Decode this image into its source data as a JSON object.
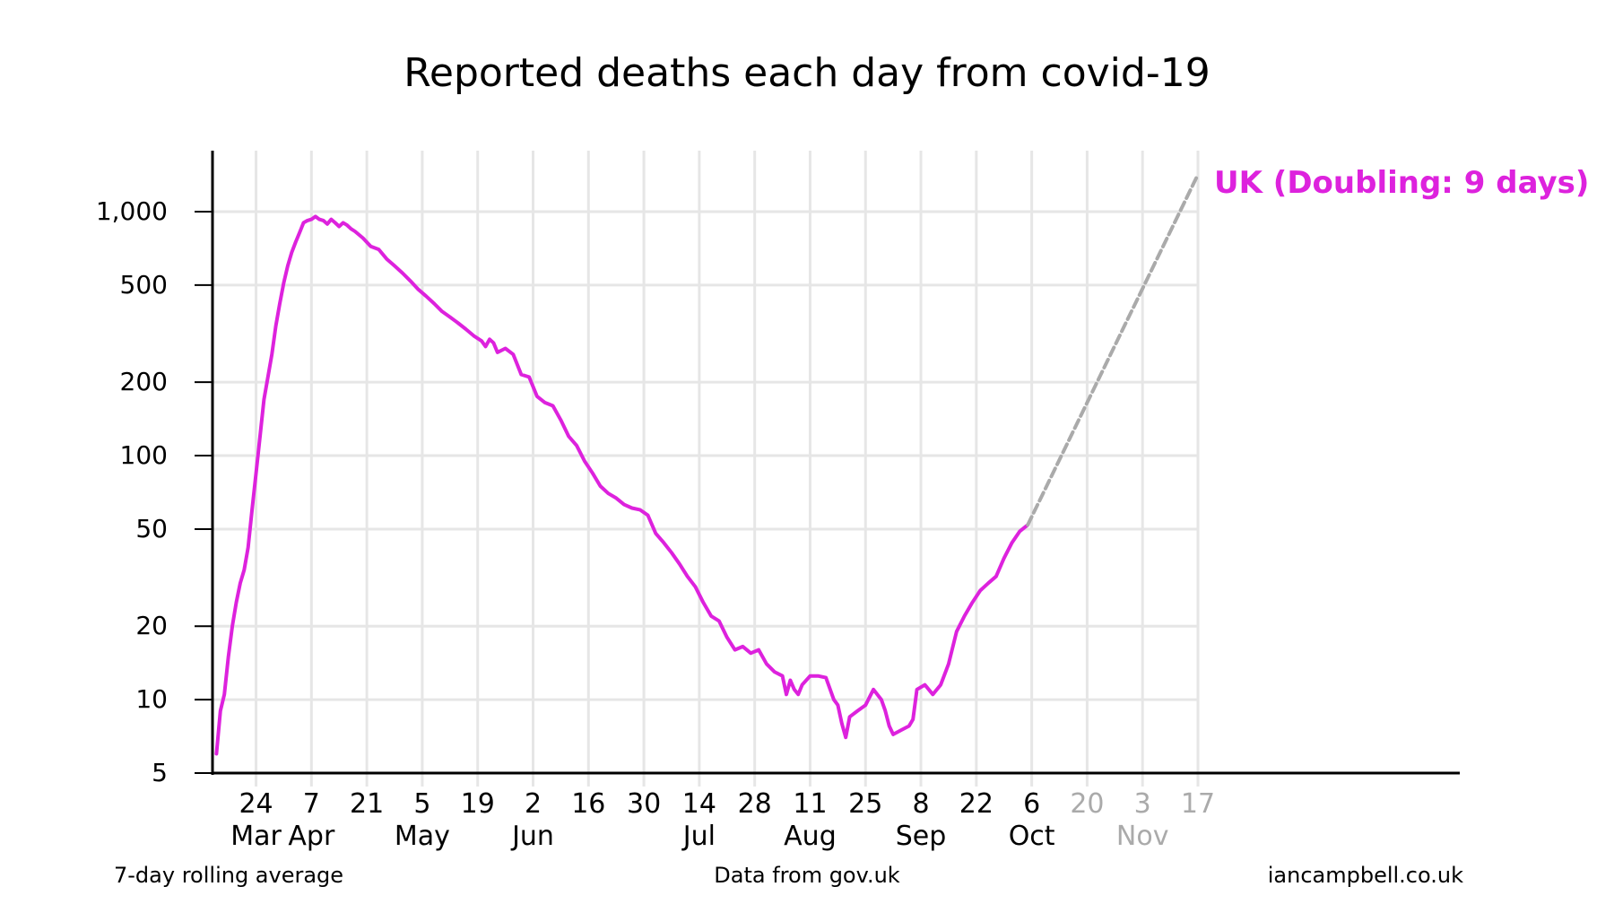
{
  "chart_data": {
    "type": "line",
    "title": "Reported deaths each day from covid-19",
    "y_scale": "log",
    "ylim": [
      5,
      1600
    ],
    "yticks": [
      {
        "value": 5,
        "label": "5"
      },
      {
        "value": 10,
        "label": "10"
      },
      {
        "value": 20,
        "label": "20"
      },
      {
        "value": 50,
        "label": "50"
      },
      {
        "value": 100,
        "label": "100"
      },
      {
        "value": 200,
        "label": "200"
      },
      {
        "value": 500,
        "label": "500"
      },
      {
        "value": 1000,
        "label": "1,000"
      }
    ],
    "xlim": [
      "2020-03-13",
      "2020-11-17"
    ],
    "xticks": [
      {
        "date": "2020-03-24",
        "day": "24",
        "month": "Mar",
        "faded": false
      },
      {
        "date": "2020-04-07",
        "day": "7",
        "month": "Apr",
        "faded": false
      },
      {
        "date": "2020-04-21",
        "day": "21",
        "month": "",
        "faded": false
      },
      {
        "date": "2020-05-05",
        "day": "5",
        "month": "May",
        "faded": false
      },
      {
        "date": "2020-05-19",
        "day": "19",
        "month": "",
        "faded": false
      },
      {
        "date": "2020-06-02",
        "day": "2",
        "month": "Jun",
        "faded": false
      },
      {
        "date": "2020-06-16",
        "day": "16",
        "month": "",
        "faded": false
      },
      {
        "date": "2020-06-30",
        "day": "30",
        "month": "",
        "faded": false
      },
      {
        "date": "2020-07-14",
        "day": "14",
        "month": "Jul",
        "faded": false
      },
      {
        "date": "2020-07-28",
        "day": "28",
        "month": "",
        "faded": false
      },
      {
        "date": "2020-08-11",
        "day": "11",
        "month": "Aug",
        "faded": false
      },
      {
        "date": "2020-08-25",
        "day": "25",
        "month": "",
        "faded": false
      },
      {
        "date": "2020-09-08",
        "day": "8",
        "month": "Sep",
        "faded": false
      },
      {
        "date": "2020-09-22",
        "day": "22",
        "month": "",
        "faded": false
      },
      {
        "date": "2020-10-06",
        "day": "6",
        "month": "Oct",
        "faded": false
      },
      {
        "date": "2020-10-20",
        "day": "20",
        "month": "",
        "faded": true
      },
      {
        "date": "2020-11-03",
        "day": "3",
        "month": "Nov",
        "faded": true
      },
      {
        "date": "2020-11-17",
        "day": "17",
        "month": "",
        "faded": true
      }
    ],
    "grid": true,
    "series": [
      {
        "name": "UK (Doubling: 9 days)",
        "color": "#dd22dd",
        "style": "solid",
        "points": [
          [
            "2020-03-14",
            6
          ],
          [
            "2020-03-15",
            9
          ],
          [
            "2020-03-16",
            10.5
          ],
          [
            "2020-03-17",
            15
          ],
          [
            "2020-03-18",
            20
          ],
          [
            "2020-03-19",
            25
          ],
          [
            "2020-03-20",
            30
          ],
          [
            "2020-03-21",
            34
          ],
          [
            "2020-03-22",
            42
          ],
          [
            "2020-03-23",
            60
          ],
          [
            "2020-03-24",
            85
          ],
          [
            "2020-03-25",
            120
          ],
          [
            "2020-03-26",
            170
          ],
          [
            "2020-03-27",
            210
          ],
          [
            "2020-03-28",
            260
          ],
          [
            "2020-03-29",
            340
          ],
          [
            "2020-03-30",
            420
          ],
          [
            "2020-03-31",
            510
          ],
          [
            "2020-04-01",
            600
          ],
          [
            "2020-04-02",
            680
          ],
          [
            "2020-04-03",
            750
          ],
          [
            "2020-04-04",
            820
          ],
          [
            "2020-04-05",
            900
          ],
          [
            "2020-04-06",
            920
          ],
          [
            "2020-04-07",
            930
          ],
          [
            "2020-04-08",
            955
          ],
          [
            "2020-04-09",
            930
          ],
          [
            "2020-04-10",
            920
          ],
          [
            "2020-04-11",
            890
          ],
          [
            "2020-04-12",
            930
          ],
          [
            "2020-04-13",
            900
          ],
          [
            "2020-04-14",
            870
          ],
          [
            "2020-04-15",
            900
          ],
          [
            "2020-04-16",
            880
          ],
          [
            "2020-04-17",
            850
          ],
          [
            "2020-04-18",
            830
          ],
          [
            "2020-04-20",
            780
          ],
          [
            "2020-04-22",
            720
          ],
          [
            "2020-04-24",
            700
          ],
          [
            "2020-04-26",
            640
          ],
          [
            "2020-04-28",
            600
          ],
          [
            "2020-04-30",
            560
          ],
          [
            "2020-05-02",
            520
          ],
          [
            "2020-05-04",
            480
          ],
          [
            "2020-05-06",
            450
          ],
          [
            "2020-05-08",
            420
          ],
          [
            "2020-05-10",
            390
          ],
          [
            "2020-05-12",
            370
          ],
          [
            "2020-05-14",
            350
          ],
          [
            "2020-05-16",
            330
          ],
          [
            "2020-05-18",
            310
          ],
          [
            "2020-05-20",
            295
          ],
          [
            "2020-05-21",
            280
          ],
          [
            "2020-05-22",
            300
          ],
          [
            "2020-05-23",
            290
          ],
          [
            "2020-05-24",
            265
          ],
          [
            "2020-05-26",
            275
          ],
          [
            "2020-05-28",
            260
          ],
          [
            "2020-05-30",
            215
          ],
          [
            "2020-06-01",
            210
          ],
          [
            "2020-06-03",
            175
          ],
          [
            "2020-06-05",
            165
          ],
          [
            "2020-06-07",
            160
          ],
          [
            "2020-06-09",
            140
          ],
          [
            "2020-06-11",
            120
          ],
          [
            "2020-06-13",
            110
          ],
          [
            "2020-06-15",
            95
          ],
          [
            "2020-06-17",
            85
          ],
          [
            "2020-06-19",
            75
          ],
          [
            "2020-06-21",
            70
          ],
          [
            "2020-06-23",
            67
          ],
          [
            "2020-06-25",
            63
          ],
          [
            "2020-06-27",
            61
          ],
          [
            "2020-06-29",
            60
          ],
          [
            "2020-07-01",
            57
          ],
          [
            "2020-07-03",
            48
          ],
          [
            "2020-07-05",
            44
          ],
          [
            "2020-07-07",
            40
          ],
          [
            "2020-07-09",
            36
          ],
          [
            "2020-07-11",
            32
          ],
          [
            "2020-07-13",
            29
          ],
          [
            "2020-07-15",
            25
          ],
          [
            "2020-07-17",
            22
          ],
          [
            "2020-07-19",
            21
          ],
          [
            "2020-07-21",
            18
          ],
          [
            "2020-07-23",
            16
          ],
          [
            "2020-07-25",
            16.5
          ],
          [
            "2020-07-27",
            15.5
          ],
          [
            "2020-07-29",
            16
          ],
          [
            "2020-07-31",
            14
          ],
          [
            "2020-08-02",
            13
          ],
          [
            "2020-08-04",
            12.5
          ],
          [
            "2020-08-05",
            10.5
          ],
          [
            "2020-08-06",
            12
          ],
          [
            "2020-08-07",
            11
          ],
          [
            "2020-08-08",
            10.5
          ],
          [
            "2020-08-09",
            11.5
          ],
          [
            "2020-08-11",
            12.5
          ],
          [
            "2020-08-13",
            12.5
          ],
          [
            "2020-08-15",
            12.3
          ],
          [
            "2020-08-17",
            10
          ],
          [
            "2020-08-18",
            9.5
          ],
          [
            "2020-08-19",
            8
          ],
          [
            "2020-08-20",
            7
          ],
          [
            "2020-08-21",
            8.5
          ],
          [
            "2020-08-23",
            9
          ],
          [
            "2020-08-25",
            9.5
          ],
          [
            "2020-08-27",
            11
          ],
          [
            "2020-08-29",
            10
          ],
          [
            "2020-08-30",
            9
          ],
          [
            "2020-08-31",
            7.8
          ],
          [
            "2020-09-01",
            7.2
          ],
          [
            "2020-09-03",
            7.5
          ],
          [
            "2020-09-05",
            7.8
          ],
          [
            "2020-09-06",
            8.3
          ],
          [
            "2020-09-07",
            11
          ],
          [
            "2020-09-09",
            11.5
          ],
          [
            "2020-09-11",
            10.5
          ],
          [
            "2020-09-13",
            11.5
          ],
          [
            "2020-09-15",
            14
          ],
          [
            "2020-09-17",
            19
          ],
          [
            "2020-09-19",
            22
          ],
          [
            "2020-09-21",
            25
          ],
          [
            "2020-09-23",
            28
          ],
          [
            "2020-09-25",
            30
          ],
          [
            "2020-09-27",
            32
          ],
          [
            "2020-09-29",
            38
          ],
          [
            "2020-10-01",
            44
          ],
          [
            "2020-10-03",
            49
          ],
          [
            "2020-10-05",
            52
          ]
        ]
      },
      {
        "name": "",
        "color": "#aaaaaa",
        "style": "dashed",
        "points": [
          [
            "2020-10-05",
            52
          ],
          [
            "2020-11-17",
            1420
          ]
        ]
      }
    ],
    "series_label": "UK (Doubling: 9 days)"
  },
  "footer": {
    "left": "7-day rolling average",
    "center": "Data from gov.uk",
    "right": "iancampbell.co.uk"
  },
  "colors": {
    "series": "#dd22dd",
    "projection": "#aaaaaa",
    "grid": "#e6e6e6",
    "faded_label": "#aaaaaa"
  }
}
